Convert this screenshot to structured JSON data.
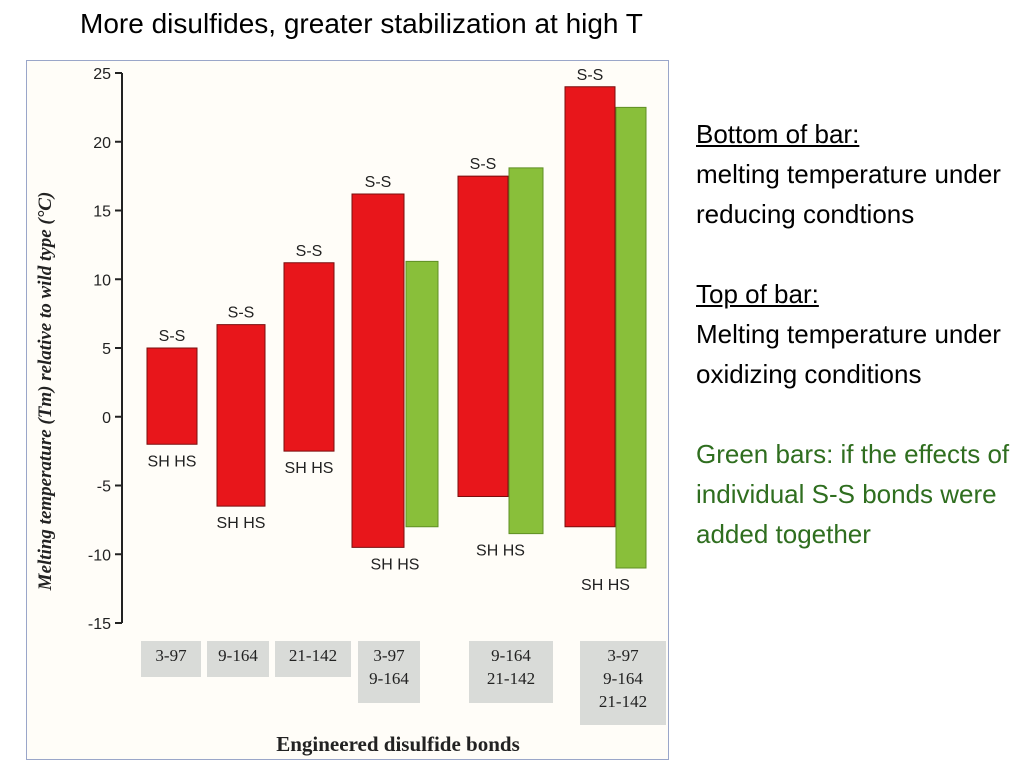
{
  "slide": {
    "title": "More disulfides, greater stabilization at high T",
    "notes": {
      "bottom_heading": "Bottom of bar:",
      "bottom_text": "melting temperature under reducing condtions",
      "top_heading": "Top of bar:",
      "top_text": "Melting temperature under oxidizing conditions",
      "green_text": "Green bars: if the effects of individual S-S bonds were added together"
    }
  },
  "chart_data": {
    "type": "bar",
    "ylabel": "Melting temperature (Tm) relative to wild type (°C)",
    "xlabel": "Engineered disulfide bonds",
    "ylim": [
      -15,
      25
    ],
    "yticks": [
      "25",
      "20",
      "15",
      "10",
      "5",
      "0",
      "-5",
      "-10",
      "-15"
    ],
    "grid": false,
    "legend": "none",
    "colors": {
      "measured": "#e8161b",
      "additive": "#89bf3a",
      "label_box": "#d9dbd8"
    },
    "groups": [
      {
        "category": [
          "3-97"
        ],
        "measured": {
          "bottom": -2.0,
          "top": 5.0,
          "top_label": "S-S",
          "bottom_label": "SH  HS"
        }
      },
      {
        "category": [
          "9-164"
        ],
        "measured": {
          "bottom": -6.5,
          "top": 6.7,
          "top_label": "S-S",
          "bottom_label": "SH  HS"
        }
      },
      {
        "category": [
          "21-142"
        ],
        "measured": {
          "bottom": -2.5,
          "top": 11.2,
          "top_label": "S-S",
          "bottom_label": "SH  HS"
        }
      },
      {
        "category": [
          "3-97",
          "9-164"
        ],
        "measured": {
          "bottom": -9.5,
          "top": 16.2,
          "top_label": "S-S",
          "bottom_label": "SH  HS"
        },
        "additive": {
          "bottom": -8.0,
          "top": 11.3
        }
      },
      {
        "category": [
          "9-164",
          "21-142"
        ],
        "measured": {
          "bottom": -5.8,
          "top": 17.5,
          "top_label": "S-S",
          "bottom_label": "SH  HS"
        },
        "additive": {
          "bottom": -8.5,
          "top": 18.1
        }
      },
      {
        "category": [
          "3-97",
          "9-164",
          "21-142"
        ],
        "measured": {
          "bottom": -8.0,
          "top": 24.0,
          "top_label": "S-S",
          "bottom_label": "SH  HS"
        },
        "additive": {
          "bottom": -11.0,
          "top": 22.5
        }
      }
    ]
  }
}
